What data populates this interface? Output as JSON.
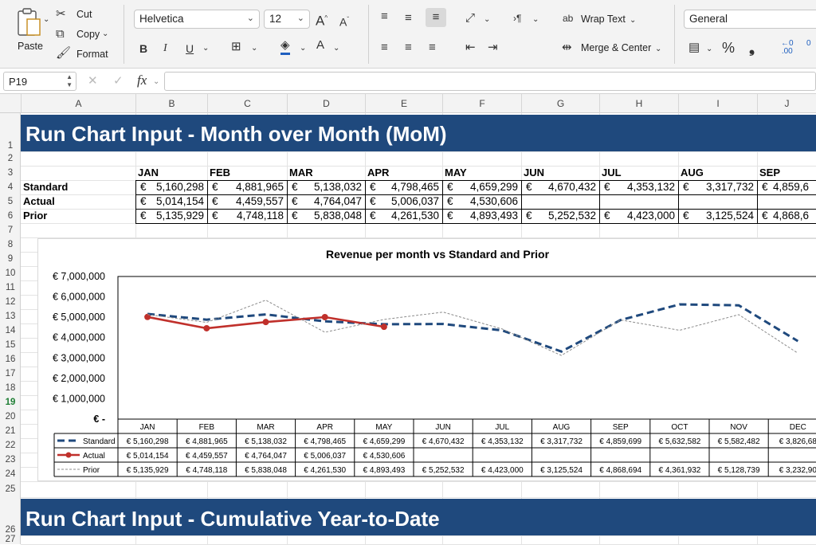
{
  "ribbon": {
    "paste": "Paste",
    "cut": "Cut",
    "copy": "Copy",
    "format": "Format",
    "font_name": "Helvetica",
    "font_size": "12",
    "wrap_text": "Wrap Text",
    "merge_center": "Merge & Center",
    "number_format": "General"
  },
  "formula_bar": {
    "name_box": "P19",
    "formula": ""
  },
  "columns": [
    "A",
    "B",
    "C",
    "D",
    "E",
    "F",
    "G",
    "H",
    "I",
    "J"
  ],
  "rows": [
    "1",
    "2",
    "3",
    "4",
    "5",
    "6",
    "7",
    "8",
    "9",
    "10",
    "11",
    "12",
    "13",
    "14",
    "15",
    "16",
    "17",
    "18",
    "19",
    "20",
    "21",
    "22",
    "23",
    "24",
    "25",
    "26",
    "27"
  ],
  "sheet": {
    "title_mom": "Run Chart Input - Month over Month (MoM)",
    "title_ytd": "Run Chart Input - Cumulative Year-to-Date",
    "currency": "€",
    "months": [
      "JAN",
      "FEB",
      "MAR",
      "APR",
      "MAY",
      "JUN",
      "JUL",
      "AUG",
      "SEP"
    ],
    "table": [
      {
        "label": "Standard",
        "values": [
          "5,160,298",
          "4,881,965",
          "5,138,032",
          "4,798,465",
          "4,659,299",
          "4,670,432",
          "4,353,132",
          "3,317,732",
          "4,859,6"
        ]
      },
      {
        "label": "Actual",
        "values": [
          "5,014,154",
          "4,459,557",
          "4,764,047",
          "5,006,037",
          "4,530,606",
          "",
          "",
          "",
          ""
        ]
      },
      {
        "label": "Prior",
        "values": [
          "5,135,929",
          "4,748,118",
          "5,838,048",
          "4,261,530",
          "4,893,493",
          "5,252,532",
          "4,423,000",
          "3,125,524",
          "4,868,6"
        ]
      }
    ]
  },
  "chart_data": {
    "type": "line",
    "title": "Revenue per month vs Standard and Prior",
    "ylim": [
      0,
      7000000
    ],
    "y_ticks": [
      "€ 7,000,000",
      "€ 6,000,000",
      "€ 5,000,000",
      "€ 4,000,000",
      "€ 3,000,000",
      "€ 2,000,000",
      "€ 1,000,000",
      "€ -"
    ],
    "categories": [
      "JAN",
      "FEB",
      "MAR",
      "APR",
      "MAY",
      "JUN",
      "JUL",
      "AUG",
      "SEP",
      "OCT",
      "NOV",
      "DEC"
    ],
    "legend_position": "bottom-table",
    "series": [
      {
        "name": "Standard",
        "color": "#1f497d",
        "style": "dashed",
        "values": [
          5160298,
          4881965,
          5138032,
          4798465,
          4659299,
          4670432,
          4353132,
          3317732,
          4859699,
          5632582,
          5582482,
          3826687
        ],
        "labels": [
          "€ 5,160,298",
          "€ 4,881,965",
          "€ 5,138,032",
          "€ 4,798,465",
          "€ 4,659,299",
          "€ 4,670,432",
          "€ 4,353,132",
          "€ 3,317,732",
          "€ 4,859,699",
          "€ 5,632,582",
          "€ 5,582,482",
          "€ 3,826,68"
        ]
      },
      {
        "name": "Actual",
        "color": "#c0302b",
        "style": "solid-marker",
        "values": [
          5014154,
          4459557,
          4764047,
          5006037,
          4530606,
          null,
          null,
          null,
          null,
          null,
          null,
          null
        ],
        "labels": [
          "€ 5,014,154",
          "€ 4,459,557",
          "€ 4,764,047",
          "€ 5,006,037",
          "€ 4,530,606",
          "",
          "",
          "",
          "",
          "",
          "",
          ""
        ]
      },
      {
        "name": "Prior",
        "color": "#8c8c8c",
        "style": "dotted",
        "values": [
          5135929,
          4748118,
          5838048,
          4261530,
          4893493,
          5252532,
          4423000,
          3125524,
          4868694,
          4361932,
          5128739,
          3232904
        ],
        "labels": [
          "€ 5,135,929",
          "€ 4,748,118",
          "€ 5,838,048",
          "€ 4,261,530",
          "€ 4,893,493",
          "€ 5,252,532",
          "€ 4,423,000",
          "€ 3,125,524",
          "€ 4,868,694",
          "€ 4,361,932",
          "€ 5,128,739",
          "€ 3,232,90"
        ]
      }
    ]
  }
}
